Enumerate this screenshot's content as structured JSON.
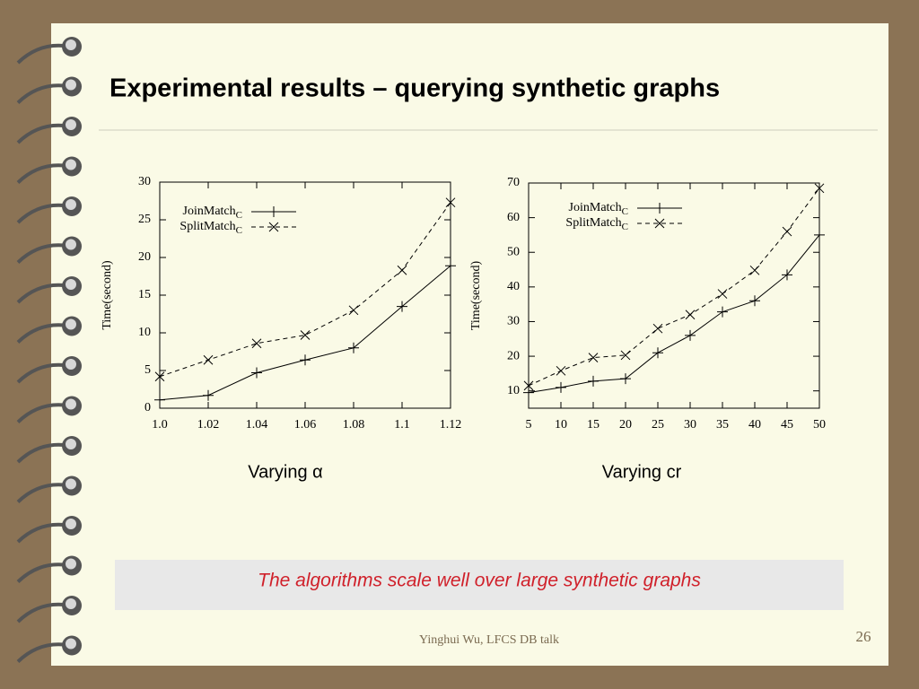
{
  "slide": {
    "title": "Experimental results – querying synthetic graphs",
    "note": "The algorithms scale well over large synthetic graphs",
    "footer": "Yinghui Wu, LFCS DB talk",
    "page_number": "26"
  },
  "chart_data": [
    {
      "type": "line",
      "caption": "Varying α",
      "ylabel": "Time(second)",
      "legend": "upper left",
      "x": [
        1.0,
        1.02,
        1.04,
        1.06,
        1.08,
        1.1,
        1.12
      ],
      "xlim": [
        1.0,
        1.12
      ],
      "xticks": [
        {
          "value": 1.0,
          "label": "1.0"
        },
        1.02,
        1.04,
        1.06,
        1.08,
        1.1,
        1.12
      ],
      "ylim": [
        0,
        30
      ],
      "yticks": [
        0,
        5,
        10,
        15,
        20,
        25,
        30
      ],
      "series": [
        {
          "name": "JoinMatchC",
          "color": "#000000",
          "linestyle": "solid",
          "marker": "+",
          "values": [
            1.1,
            1.7,
            4.7,
            6.4,
            8.0,
            13.5,
            18.9
          ]
        },
        {
          "name": "SplitMatchC",
          "color": "#000000",
          "linestyle": "dashed",
          "marker": "x",
          "values": [
            4.2,
            6.4,
            8.6,
            9.7,
            13.0,
            18.3,
            27.3
          ]
        }
      ]
    },
    {
      "type": "line",
      "caption": "Varying cr",
      "ylabel": "Time(second)",
      "legend": "upper left",
      "x": [
        5,
        10,
        15,
        20,
        25,
        30,
        35,
        40,
        45,
        50
      ],
      "xlim": [
        5,
        50
      ],
      "xticks": [
        5,
        10,
        15,
        20,
        25,
        30,
        35,
        40,
        45,
        50
      ],
      "ylim": [
        5,
        70
      ],
      "yticks": [
        10,
        20,
        30,
        40,
        50,
        60,
        70
      ],
      "series": [
        {
          "name": "JoinMatchC",
          "color": "#000000",
          "linestyle": "solid",
          "marker": "+",
          "values": [
            9.5,
            11,
            12.8,
            13.5,
            21,
            26,
            32.8,
            36,
            43.5,
            55
          ]
        },
        {
          "name": "SplitMatchC",
          "color": "#000000",
          "linestyle": "dashed",
          "marker": "x",
          "values": [
            11.5,
            15.8,
            19.6,
            20.3,
            28,
            32,
            38,
            44.8,
            56,
            68.5
          ]
        }
      ]
    }
  ]
}
